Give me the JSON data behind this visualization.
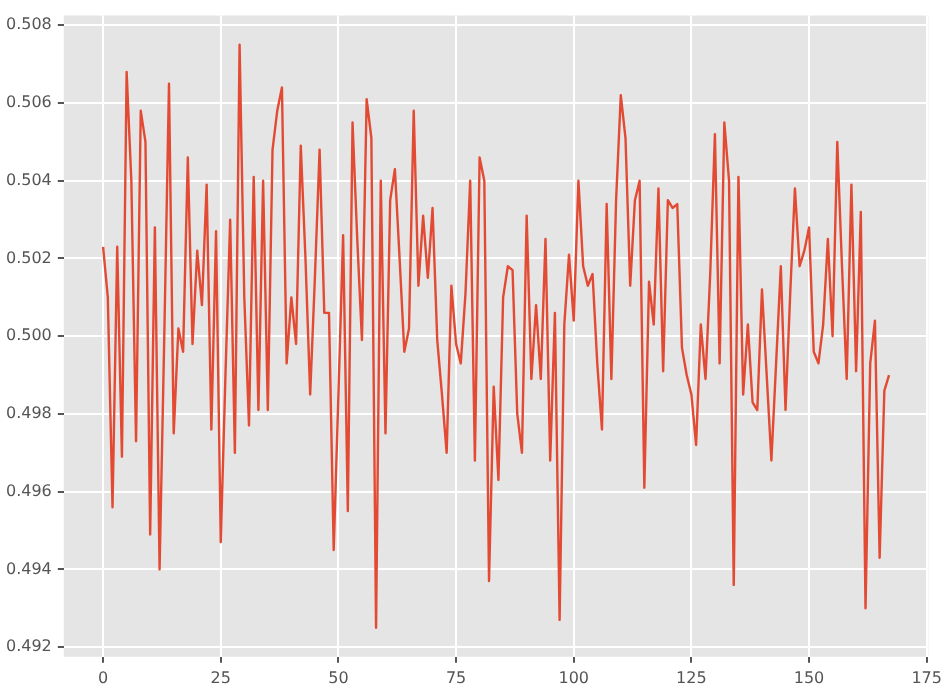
{
  "chart_data": {
    "type": "line",
    "x": [
      0,
      1,
      2,
      3,
      4,
      5,
      6,
      7,
      8,
      9,
      10,
      11,
      12,
      13,
      14,
      15,
      16,
      17,
      18,
      19,
      20,
      21,
      22,
      23,
      24,
      25,
      26,
      27,
      28,
      29,
      30,
      31,
      32,
      33,
      34,
      35,
      36,
      37,
      38,
      39,
      40,
      41,
      42,
      43,
      44,
      45,
      46,
      47,
      48,
      49,
      50,
      51,
      52,
      53,
      54,
      55,
      56,
      57,
      58,
      59,
      60,
      61,
      62,
      63,
      64,
      65,
      66,
      67,
      68,
      69,
      70,
      71,
      72,
      73,
      74,
      75,
      76,
      77,
      78,
      79,
      80,
      81,
      82,
      83,
      84,
      85,
      86,
      87,
      88,
      89,
      90,
      91,
      92,
      93,
      94,
      95,
      96,
      97,
      98,
      99,
      100,
      101,
      102,
      103,
      104,
      105,
      106,
      107,
      108,
      109,
      110,
      111,
      112,
      113,
      114,
      115,
      116,
      117,
      118,
      119,
      120,
      121,
      122,
      123,
      124,
      125,
      126,
      127,
      128,
      129,
      130,
      131,
      132,
      133,
      134,
      135,
      136,
      137,
      138,
      139,
      140,
      141,
      142,
      143,
      144,
      145,
      146,
      147,
      148,
      149,
      150,
      151,
      152,
      153,
      154,
      155,
      156,
      157,
      158,
      159,
      160,
      161,
      162,
      163,
      164,
      165,
      166,
      167
    ],
    "series": [
      {
        "color": "#e24a33",
        "values": [
          0.5023,
          0.501,
          0.4956,
          0.5023,
          0.4969,
          0.5068,
          0.504,
          0.4973,
          0.5058,
          0.505,
          0.4949,
          0.5028,
          0.494,
          0.5,
          0.5065,
          0.4975,
          0.5002,
          0.4996,
          0.5046,
          0.4998,
          0.5022,
          0.5008,
          0.5039,
          0.4976,
          0.5027,
          0.4947,
          0.499,
          0.503,
          0.497,
          0.5075,
          0.501,
          0.4977,
          0.5041,
          0.4981,
          0.504,
          0.4981,
          0.5048,
          0.5058,
          0.5064,
          0.4993,
          0.501,
          0.4998,
          0.5049,
          0.502,
          0.4985,
          0.5015,
          0.5048,
          0.5006,
          0.5006,
          0.4945,
          0.4985,
          0.5026,
          0.4955,
          0.5055,
          0.5025,
          0.4999,
          0.5061,
          0.5051,
          0.4925,
          0.504,
          0.4975,
          0.5035,
          0.5043,
          0.502,
          0.4996,
          0.5002,
          0.5058,
          0.5013,
          0.5031,
          0.5015,
          0.5033,
          0.4999,
          0.4985,
          0.497,
          0.5013,
          0.4998,
          0.4993,
          0.5011,
          0.504,
          0.4968,
          0.5046,
          0.504,
          0.4937,
          0.4987,
          0.4963,
          0.501,
          0.5018,
          0.5017,
          0.498,
          0.497,
          0.5031,
          0.4989,
          0.5008,
          0.4989,
          0.5025,
          0.4968,
          0.5006,
          0.4927,
          0.5003,
          0.5021,
          0.5004,
          0.504,
          0.5018,
          0.5013,
          0.5016,
          0.4993,
          0.4976,
          0.5034,
          0.4989,
          0.5035,
          0.5062,
          0.5051,
          0.5013,
          0.5035,
          0.504,
          0.4961,
          0.5014,
          0.5003,
          0.5038,
          0.4991,
          0.5035,
          0.5033,
          0.5034,
          0.4997,
          0.499,
          0.4985,
          0.4972,
          0.5003,
          0.4989,
          0.5016,
          0.5052,
          0.4993,
          0.5055,
          0.504,
          0.4936,
          0.5041,
          0.4985,
          0.5003,
          0.4983,
          0.4981,
          0.5012,
          0.499,
          0.4968,
          0.4993,
          0.5018,
          0.4981,
          0.5011,
          0.5038,
          0.5018,
          0.5022,
          0.5028,
          0.4996,
          0.4993,
          0.5003,
          0.5025,
          0.5,
          0.505,
          0.5018,
          0.4989,
          0.5039,
          0.4991,
          0.5032,
          0.493,
          0.4993,
          0.5004,
          0.4943,
          0.4986,
          0.499
        ]
      }
    ],
    "xlim": [
      -8.35,
      175.35
    ],
    "xticks": [
      0,
      25,
      50,
      75,
      100,
      125,
      150,
      175
    ],
    "ylim": [
      0.49175,
      0.50825
    ],
    "yticks": [
      0.492,
      0.494,
      0.496,
      0.498,
      {
        "value": 0.5,
        "label": "0.500"
      },
      0.502,
      0.504,
      0.506,
      0.508
    ],
    "grid": true,
    "legend": false
  }
}
